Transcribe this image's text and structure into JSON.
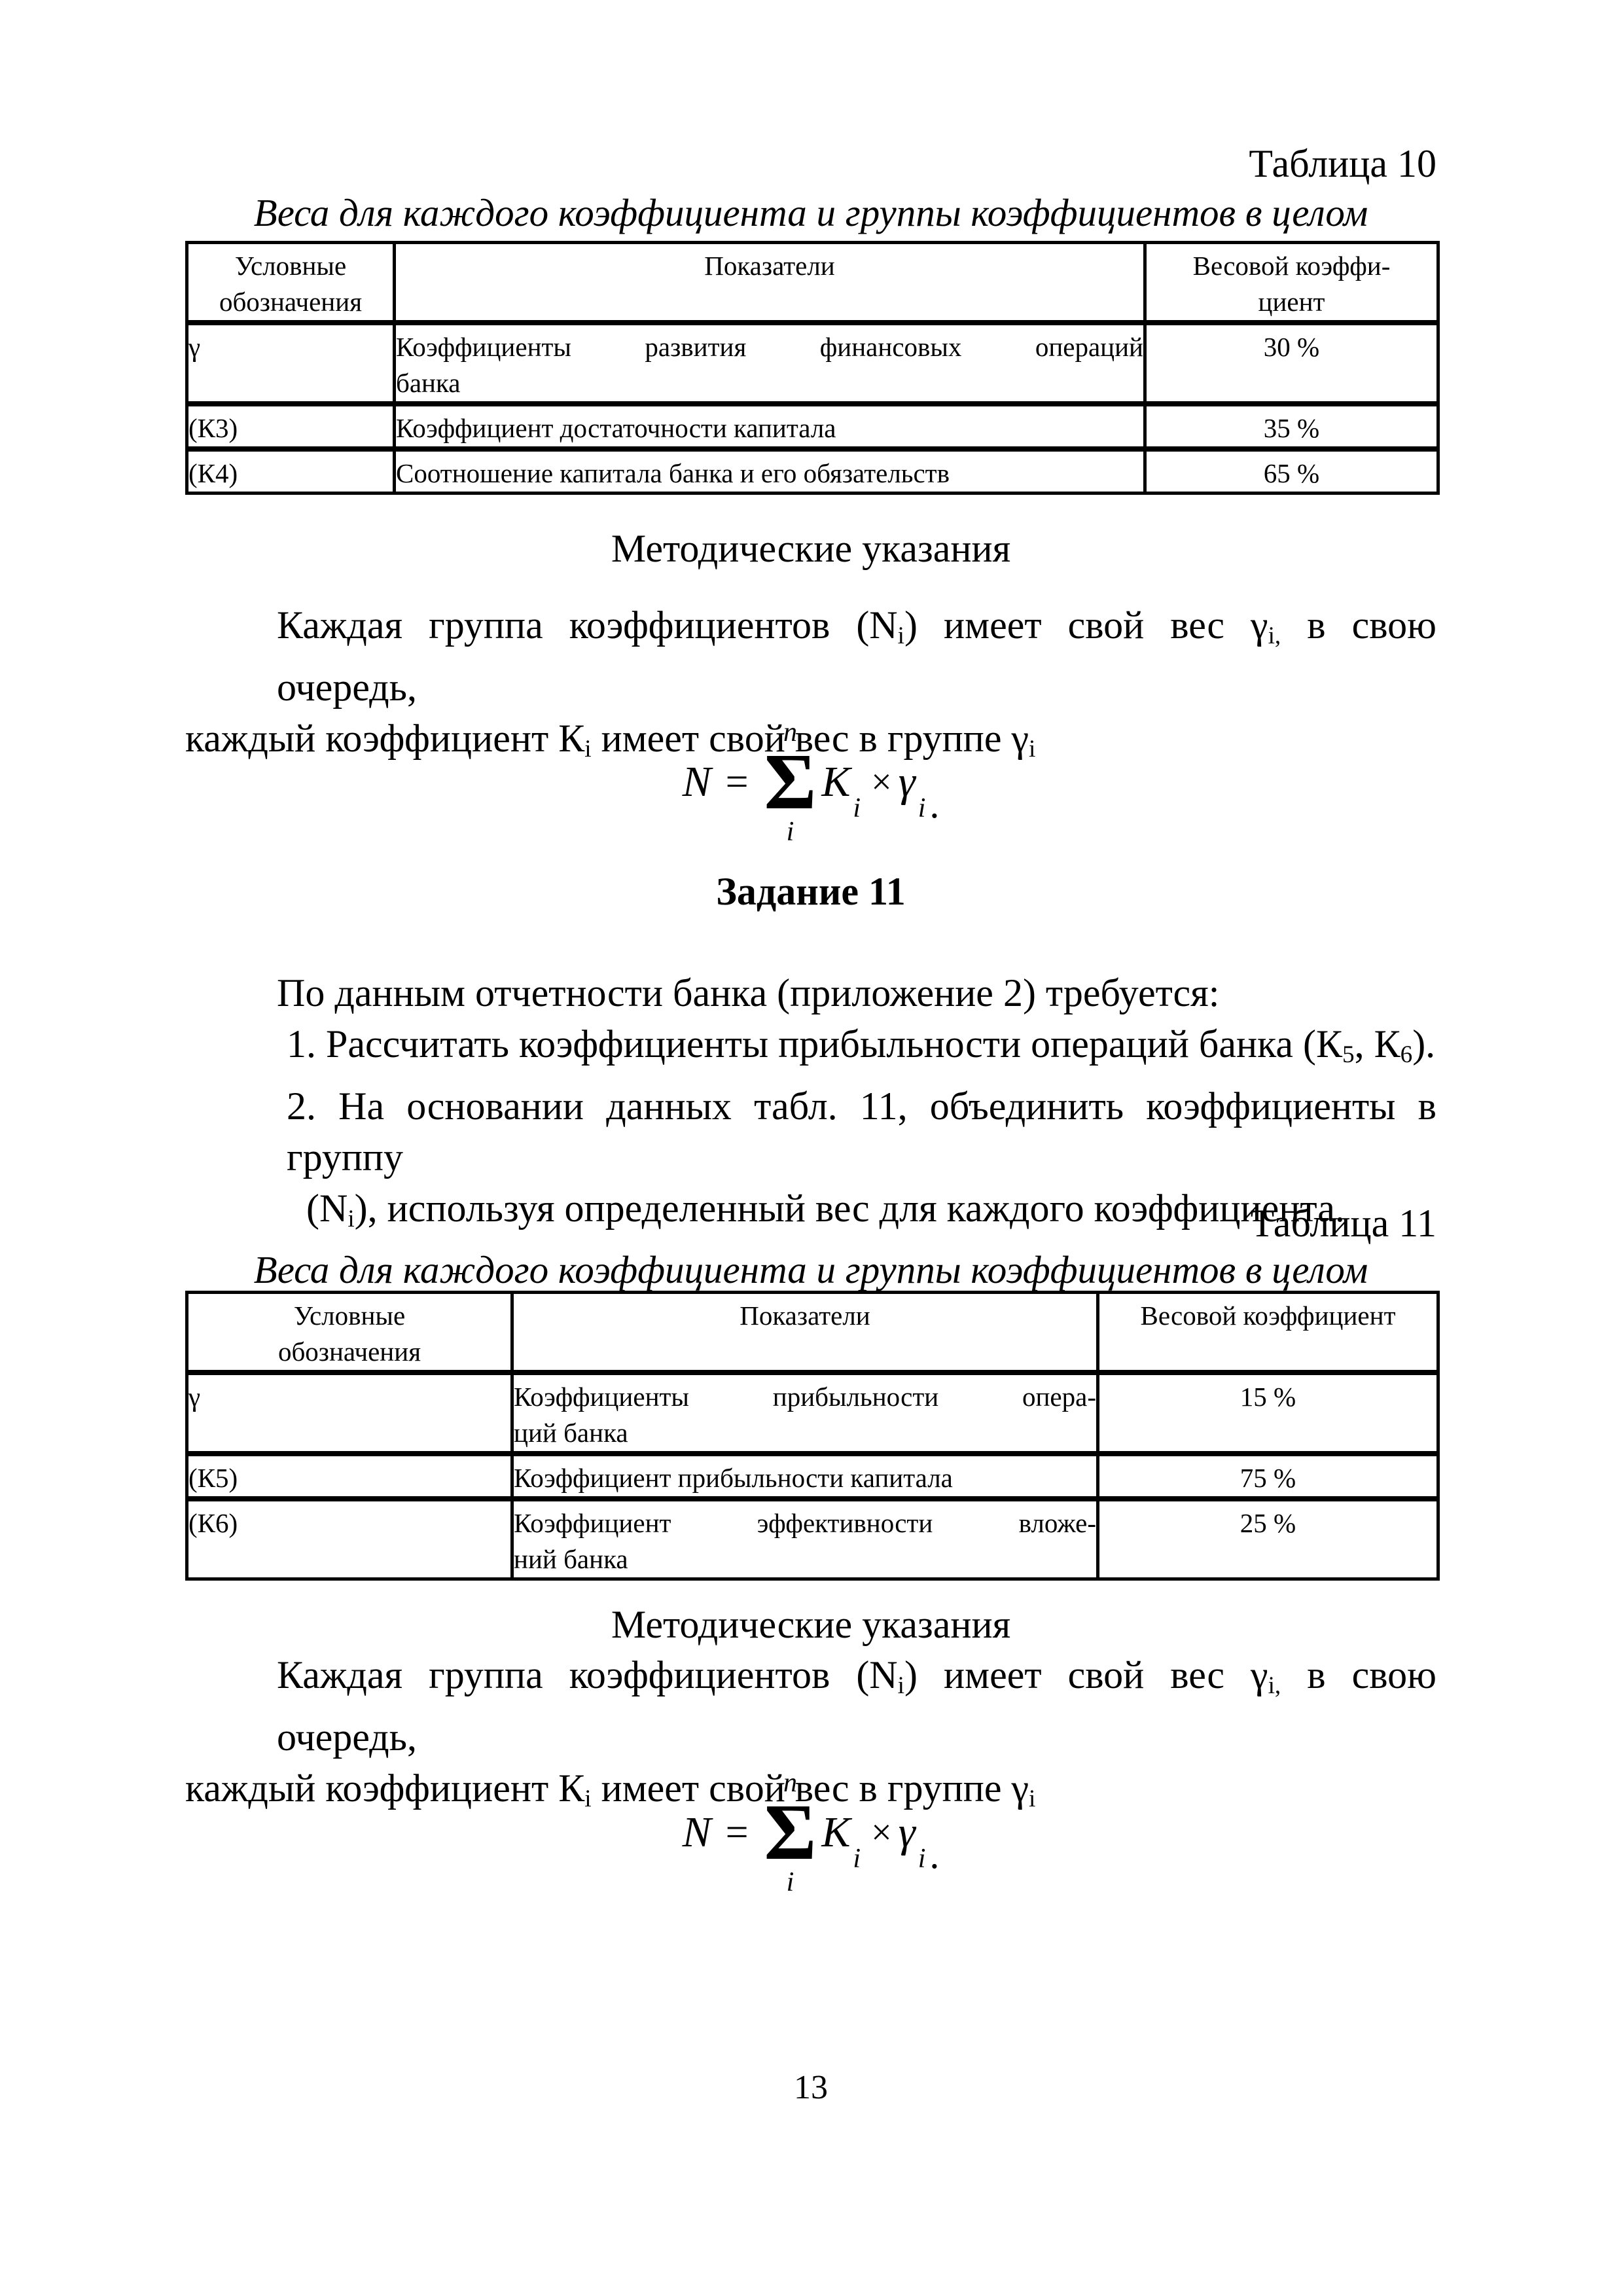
{
  "colors": {
    "text": "#000000",
    "background": "#ffffff"
  },
  "page": {
    "number": "13"
  },
  "section1": {
    "table_label": "Таблица 10",
    "table_title": "Веса для каждого коэффициента и группы коэффициентов в целом",
    "table": {
      "col1_header_lines": [
        "Условные",
        "обозначения"
      ],
      "col2_header": "Показатели",
      "col3_header_lines": [
        "Весовой коэффи-",
        "циент"
      ],
      "rows": [
        {
          "sym": "γ",
          "indicator_lines": [
            "Коэффициенты развития финансовых операций",
            "банка"
          ],
          "weight": "30 %"
        },
        {
          "sym": "(К3)",
          "indicator_lines": [
            "Коэффициент достаточности капитала"
          ],
          "weight": "35 %"
        },
        {
          "sym": "(К4)",
          "indicator_lines": [
            "Соотношение капитала банка и его обязательств"
          ],
          "weight": "65 %"
        }
      ]
    },
    "method_heading": "Методические указания",
    "paragraph_line1": [
      {
        "t": "Каждая группа коэффициентов (N"
      },
      {
        "t": "i",
        "sub": true
      },
      {
        "t": ") имеет свой вес γ"
      },
      {
        "t": "i,",
        "sub": true
      },
      {
        "t": " в свою очередь,"
      }
    ],
    "paragraph_line2": [
      {
        "t": "каждый коэффициент К"
      },
      {
        "t": "i",
        "sub": true
      },
      {
        "t": " имеет свой вес в группе γ"
      },
      {
        "t": "i",
        "sub": true
      }
    ],
    "formula": {
      "lhs": "N",
      "eq": "=",
      "sum_upper": "n",
      "sum_sigma": "Σ",
      "sum_lower": "i",
      "k": "K",
      "k_sub": "i",
      "times": "×",
      "gamma": "γ",
      "gamma_sub": "i",
      "period": "."
    }
  },
  "task": {
    "heading": "Задание 11",
    "intro": "По данным отчетности банка (приложение 2) требуется:",
    "item1": [
      {
        "t": "1. Рассчитать коэффициенты прибыльности операций банка (К"
      },
      {
        "t": "5",
        "sub": true
      },
      {
        "t": ", К"
      },
      {
        "t": "6",
        "sub": true
      },
      {
        "t": ")."
      }
    ],
    "item2_line1": "2. На основании данных табл. 11, объединить коэффициенты в группу",
    "item2_line2": [
      {
        "t": "(N"
      },
      {
        "t": "i",
        "sub": true
      },
      {
        "t": "), используя определенный вес для каждого коэффициента."
      }
    ]
  },
  "section2": {
    "table_label": "Таблица 11",
    "table_title": "Веса для каждого коэффициента и группы коэффициентов в целом",
    "table": {
      "col1_header_lines": [
        "Условные",
        "обозначения"
      ],
      "col2_header": "Показатели",
      "col3_header_lines": [
        "Весовой коэффициент"
      ],
      "rows": [
        {
          "sym": "γ",
          "indicator_lines": [
            "Коэффициенты прибыльности опера-",
            "ций банка"
          ],
          "weight": "15 %"
        },
        {
          "sym": "(К5)",
          "indicator_lines": [
            "Коэффициент прибыльности капитала"
          ],
          "weight": "75 %"
        },
        {
          "sym": "(К6)",
          "indicator_lines": [
            "Коэффициент эффективности вложе-",
            "ний банка"
          ],
          "weight": "25 %"
        }
      ]
    },
    "method_heading": "Методические указания",
    "paragraph_line1": [
      {
        "t": "Каждая группа коэффициентов (N"
      },
      {
        "t": "i",
        "sub": true
      },
      {
        "t": ") имеет свой вес γ"
      },
      {
        "t": "i,",
        "sub": true
      },
      {
        "t": " в свою очередь,"
      }
    ],
    "paragraph_line2": [
      {
        "t": "каждый коэффициент К"
      },
      {
        "t": "i",
        "sub": true
      },
      {
        "t": " имеет свой вес в группе γ"
      },
      {
        "t": "i",
        "sub": true
      }
    ],
    "formula": {
      "lhs": "N",
      "eq": "=",
      "sum_upper": "n",
      "sum_sigma": "Σ",
      "sum_lower": "i",
      "k": "K",
      "k_sub": "i",
      "times": "×",
      "gamma": "γ",
      "gamma_sub": "i",
      "period": "."
    }
  }
}
